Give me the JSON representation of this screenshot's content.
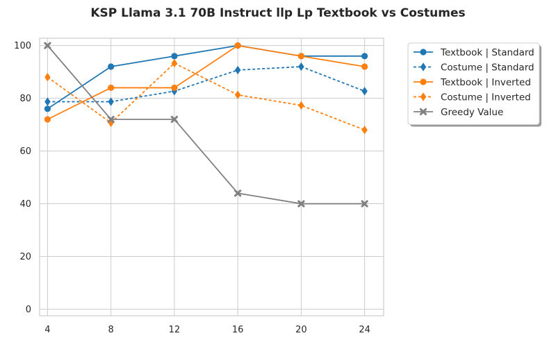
{
  "chart_data": {
    "type": "line",
    "title": "KSP Llama 3.1 70B Instruct llp Lp Textbook vs Costumes",
    "xlabel": "",
    "ylabel": "",
    "x": [
      4,
      8,
      12,
      16,
      20,
      24
    ],
    "x_ticks": [
      "4",
      "8",
      "12",
      "16",
      "20",
      "24"
    ],
    "y_ticks": [
      "0",
      "20",
      "40",
      "60",
      "80",
      "100"
    ],
    "xlim": [
      3.5,
      25.2
    ],
    "ylim": [
      -2.5,
      102.8
    ],
    "grid": true,
    "legend_position": "outside-top-right",
    "series": [
      {
        "name": "Textbook | Standard",
        "color": "#1f77b4",
        "dash": "solid",
        "marker": "circle",
        "values": [
          76,
          92,
          96,
          100,
          96,
          96
        ]
      },
      {
        "name": "Costume | Standard",
        "color": "#1f77b4",
        "dash": "dotted",
        "marker": "diamond",
        "values": [
          78.7,
          78.7,
          82.7,
          90.7,
          92,
          82.7
        ]
      },
      {
        "name": "Textbook | Inverted",
        "color": "#ff7f0e",
        "dash": "solid",
        "marker": "circle",
        "values": [
          72,
          84,
          84,
          100,
          96,
          92
        ]
      },
      {
        "name": "Costume | Inverted",
        "color": "#ff7f0e",
        "dash": "dotted",
        "marker": "diamond",
        "values": [
          88,
          70.7,
          93.3,
          81.3,
          77.3,
          68
        ]
      },
      {
        "name": "Greedy Value",
        "color": "#808080",
        "dash": "solid",
        "marker": "x",
        "values": [
          100,
          72,
          72,
          44,
          40,
          40
        ]
      }
    ]
  }
}
